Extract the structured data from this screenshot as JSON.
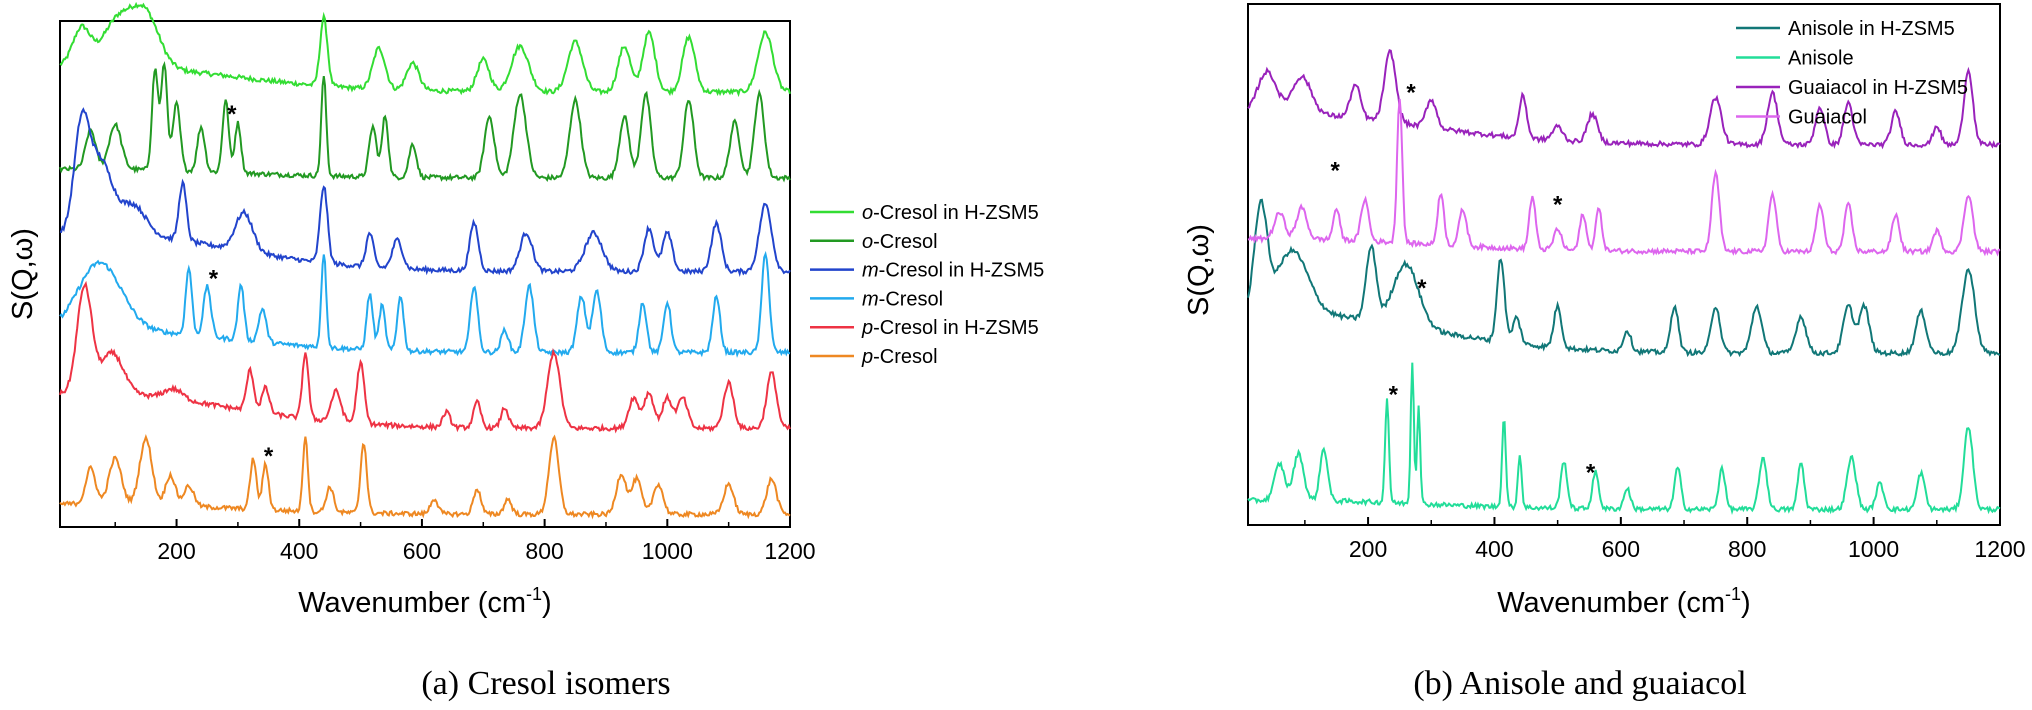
{
  "chart_data": [
    {
      "type": "line",
      "caption": "(a) Cresol isomers",
      "xlabel": "Wavenumber (cm",
      "xlabel_sup": "-1",
      "xlabel_close": ")",
      "ylabel": "S(Q,ω)",
      "xlim": [
        10,
        1200
      ],
      "xticks": [
        200,
        400,
        600,
        800,
        1000,
        1200
      ],
      "y_ticks_shown": false,
      "legend_position": "right-outside",
      "series": [
        {
          "name": "o-Cresol in H-ZSM5",
          "italic": "o",
          "rest": "-Cresol in H-ZSM5",
          "color": "#33dd33",
          "offset": 8.6,
          "amp": 0.9,
          "broad": 1.5,
          "peaks": [
            [
              45,
              0.8,
              14
            ],
            [
              105,
              1.0,
              25
            ],
            [
              150,
              1.1,
              22
            ],
            [
              440,
              1.5,
              6
            ],
            [
              530,
              0.9,
              10
            ],
            [
              585,
              0.6,
              10
            ],
            [
              700,
              0.7,
              10
            ],
            [
              760,
              1.0,
              14
            ],
            [
              850,
              1.1,
              12
            ],
            [
              930,
              1.0,
              10
            ],
            [
              970,
              1.3,
              10
            ],
            [
              1035,
              1.2,
              10
            ],
            [
              1160,
              1.3,
              12
            ]
          ]
        },
        {
          "name": "o-Cresol",
          "italic": "o",
          "rest": "-Cresol",
          "color": "#229922",
          "offset": 6.9,
          "amp": 1.1,
          "broad": 0.5,
          "peaks": [
            [
              60,
              0.7,
              8
            ],
            [
              100,
              0.8,
              10
            ],
            [
              165,
              1.8,
              5
            ],
            [
              180,
              1.9,
              5
            ],
            [
              200,
              1.2,
              6
            ],
            [
              240,
              0.8,
              6
            ],
            [
              280,
              1.3,
              5
            ],
            [
              300,
              0.9,
              5
            ],
            [
              440,
              1.8,
              4
            ],
            [
              520,
              0.9,
              6
            ],
            [
              540,
              1.1,
              5
            ],
            [
              585,
              0.6,
              6
            ],
            [
              710,
              1.1,
              8
            ],
            [
              760,
              1.5,
              10
            ],
            [
              850,
              1.4,
              9
            ],
            [
              930,
              1.1,
              8
            ],
            [
              965,
              1.5,
              8
            ],
            [
              1035,
              1.4,
              8
            ],
            [
              1110,
              1.0,
              8
            ],
            [
              1150,
              1.5,
              8
            ]
          ]
        },
        {
          "name": "m-Cresol in H-ZSM5",
          "italic": "m",
          "rest": "-Cresol in H-ZSM5",
          "color": "#2244cc",
          "offset": 5.05,
          "amp": 0.95,
          "broad": 2.2,
          "peaks": [
            [
              45,
              2.0,
              12
            ],
            [
              75,
              1.5,
              20
            ],
            [
              130,
              0.6,
              20
            ],
            [
              210,
              1.2,
              6
            ],
            [
              310,
              0.8,
              14
            ],
            [
              440,
              1.6,
              6
            ],
            [
              515,
              0.7,
              6
            ],
            [
              560,
              0.6,
              8
            ],
            [
              685,
              1.0,
              7
            ],
            [
              770,
              0.8,
              10
            ],
            [
              880,
              0.8,
              14
            ],
            [
              970,
              0.9,
              8
            ],
            [
              1000,
              0.8,
              8
            ],
            [
              1080,
              1.0,
              8
            ],
            [
              1160,
              1.4,
              10
            ]
          ]
        },
        {
          "name": "m-Cresol",
          "italic": "m",
          "rest": "-Cresol",
          "color": "#22aaee",
          "offset": 3.45,
          "amp": 1.1,
          "broad": 1.3,
          "peaks": [
            [
              75,
              1.2,
              35
            ],
            [
              220,
              1.2,
              5
            ],
            [
              250,
              0.9,
              6
            ],
            [
              305,
              1.0,
              5
            ],
            [
              340,
              0.6,
              6
            ],
            [
              440,
              1.7,
              4
            ],
            [
              515,
              1.0,
              5
            ],
            [
              535,
              0.8,
              5
            ],
            [
              565,
              1.0,
              5
            ],
            [
              685,
              1.2,
              6
            ],
            [
              735,
              0.4,
              6
            ],
            [
              775,
              1.2,
              7
            ],
            [
              860,
              1.0,
              7
            ],
            [
              885,
              1.1,
              7
            ],
            [
              960,
              0.9,
              6
            ],
            [
              1000,
              0.9,
              6
            ],
            [
              1080,
              1.0,
              6
            ],
            [
              1160,
              1.8,
              6
            ]
          ]
        },
        {
          "name": "p-Cresol in H-ZSM5",
          "italic": "p",
          "rest": "-Cresol in H-ZSM5",
          "color": "#ee3344",
          "offset": 1.95,
          "amp": 1.0,
          "broad": 2.0,
          "peaks": [
            [
              50,
              2.1,
              12
            ],
            [
              95,
              0.8,
              18
            ],
            [
              195,
              0.2,
              15
            ],
            [
              320,
              0.8,
              6
            ],
            [
              345,
              0.5,
              6
            ],
            [
              410,
              1.3,
              5
            ],
            [
              460,
              0.6,
              8
            ],
            [
              500,
              1.2,
              6
            ],
            [
              640,
              0.3,
              6
            ],
            [
              690,
              0.5,
              6
            ],
            [
              735,
              0.4,
              6
            ],
            [
              815,
              1.5,
              10
            ],
            [
              945,
              0.6,
              8
            ],
            [
              970,
              0.7,
              8
            ],
            [
              1000,
              0.6,
              8
            ],
            [
              1025,
              0.6,
              8
            ],
            [
              1100,
              0.9,
              8
            ],
            [
              1170,
              1.1,
              8
            ]
          ]
        },
        {
          "name": "p-Cresol",
          "italic": "p",
          "rest": "-Cresol",
          "color": "#ee8822",
          "offset": 0.25,
          "amp": 1.0,
          "broad": 0.6,
          "peaks": [
            [
              60,
              0.7,
              8
            ],
            [
              100,
              0.9,
              10
            ],
            [
              150,
              1.3,
              10
            ],
            [
              190,
              0.6,
              8
            ],
            [
              220,
              0.4,
              8
            ],
            [
              325,
              1.0,
              5
            ],
            [
              345,
              0.9,
              5
            ],
            [
              410,
              1.5,
              4
            ],
            [
              450,
              0.5,
              6
            ],
            [
              505,
              1.4,
              5
            ],
            [
              620,
              0.3,
              6
            ],
            [
              690,
              0.5,
              6
            ],
            [
              740,
              0.3,
              6
            ],
            [
              815,
              1.5,
              8
            ],
            [
              925,
              0.8,
              8
            ],
            [
              950,
              0.7,
              8
            ],
            [
              985,
              0.6,
              8
            ],
            [
              1100,
              0.6,
              8
            ],
            [
              1170,
              0.7,
              8
            ]
          ]
        }
      ],
      "annotations": [
        {
          "text": "*",
          "x": 290,
          "y": 8.0
        },
        {
          "text": "*",
          "x": 260,
          "y": 4.75
        },
        {
          "text": "*",
          "x": 350,
          "y": 1.25
        }
      ]
    },
    {
      "type": "line",
      "caption": "(b) Anisole and guaiacol",
      "xlabel": "Wavenumber (cm",
      "xlabel_sup": "-1",
      "xlabel_close": ")",
      "ylabel": "S(Q,ω)",
      "xlim": [
        10,
        1200
      ],
      "xticks": [
        200,
        400,
        600,
        800,
        1000,
        1200
      ],
      "y_ticks_shown": false,
      "legend_position": "top-right",
      "series": [
        {
          "name": "Anisole in H-ZSM5",
          "italic": "",
          "rest": "Anisole in H-ZSM5",
          "color": "#117777",
          "offset": 3.3,
          "amp": 1.0,
          "broad": 2.2,
          "peaks": [
            [
              30,
              2.0,
              10
            ],
            [
              80,
              1.2,
              25
            ],
            [
              205,
              1.4,
              8
            ],
            [
              260,
              1.2,
              20
            ],
            [
              410,
              1.6,
              6
            ],
            [
              435,
              0.5,
              6
            ],
            [
              500,
              0.8,
              6
            ],
            [
              610,
              0.4,
              6
            ],
            [
              685,
              0.9,
              6
            ],
            [
              750,
              0.9,
              7
            ],
            [
              815,
              0.9,
              8
            ],
            [
              885,
              0.7,
              8
            ],
            [
              960,
              0.9,
              8
            ],
            [
              985,
              0.9,
              8
            ],
            [
              1075,
              0.8,
              8
            ],
            [
              1150,
              1.6,
              10
            ]
          ]
        },
        {
          "name": "Anisole",
          "italic": "",
          "rest": "Anisole",
          "color": "#22dd99",
          "offset": 0.3,
          "amp": 1.0,
          "broad": 0.5,
          "peaks": [
            [
              60,
              0.7,
              8
            ],
            [
              90,
              0.9,
              8
            ],
            [
              130,
              1.0,
              6
            ],
            [
              230,
              2.0,
              3
            ],
            [
              270,
              2.7,
              2.5
            ],
            [
              280,
              1.9,
              2.5
            ],
            [
              415,
              1.7,
              3
            ],
            [
              440,
              1.0,
              3
            ],
            [
              510,
              0.9,
              5
            ],
            [
              560,
              0.7,
              5
            ],
            [
              610,
              0.4,
              5
            ],
            [
              690,
              0.8,
              5
            ],
            [
              760,
              0.8,
              5
            ],
            [
              825,
              1.0,
              6
            ],
            [
              885,
              0.9,
              5
            ],
            [
              965,
              1.0,
              7
            ],
            [
              1010,
              0.5,
              6
            ],
            [
              1075,
              0.7,
              6
            ],
            [
              1150,
              1.6,
              7
            ]
          ]
        },
        {
          "name": "Guaiacol in H-ZSM5",
          "italic": "",
          "rest": "Guaiacol in H-ZSM5",
          "color": "#9922bb",
          "offset": 7.3,
          "amp": 0.9,
          "broad": 1.7,
          "peaks": [
            [
              40,
              0.9,
              15
            ],
            [
              95,
              0.8,
              15
            ],
            [
              180,
              0.7,
              8
            ],
            [
              235,
              1.5,
              9
            ],
            [
              300,
              0.6,
              8
            ],
            [
              445,
              0.9,
              6
            ],
            [
              500,
              0.3,
              8
            ],
            [
              555,
              0.6,
              8
            ],
            [
              750,
              1.0,
              9
            ],
            [
              840,
              1.1,
              8
            ],
            [
              915,
              0.8,
              7
            ],
            [
              960,
              0.9,
              7
            ],
            [
              1035,
              0.7,
              7
            ],
            [
              1100,
              0.4,
              6
            ],
            [
              1150,
              1.6,
              7
            ]
          ]
        },
        {
          "name": "Guaiacol",
          "italic": "",
          "rest": "Guaiacol",
          "color": "#dd66ee",
          "offset": 5.25,
          "amp": 1.0,
          "broad": 0.7,
          "peaks": [
            [
              60,
              0.5,
              8
            ],
            [
              95,
              0.6,
              8
            ],
            [
              150,
              0.6,
              5
            ],
            [
              195,
              0.8,
              6
            ],
            [
              250,
              2.8,
              4
            ],
            [
              315,
              1.0,
              5
            ],
            [
              350,
              0.7,
              6
            ],
            [
              460,
              1.0,
              5
            ],
            [
              500,
              0.4,
              6
            ],
            [
              540,
              0.7,
              5
            ],
            [
              565,
              0.8,
              5
            ],
            [
              750,
              1.5,
              6
            ],
            [
              840,
              1.1,
              6
            ],
            [
              915,
              0.9,
              6
            ],
            [
              960,
              0.9,
              6
            ],
            [
              1035,
              0.7,
              6
            ],
            [
              1100,
              0.4,
              6
            ],
            [
              1150,
              1.1,
              7
            ]
          ]
        }
      ],
      "annotations": [
        {
          "text": "*",
          "x": 268,
          "y": 8.15
        },
        {
          "text": "*",
          "x": 148,
          "y": 6.65
        },
        {
          "text": "*",
          "x": 500,
          "y": 6.0
        },
        {
          "text": "*",
          "x": 285,
          "y": 4.4
        },
        {
          "text": "*",
          "x": 240,
          "y": 2.35
        },
        {
          "text": "*",
          "x": 552,
          "y": 0.85
        }
      ]
    }
  ]
}
